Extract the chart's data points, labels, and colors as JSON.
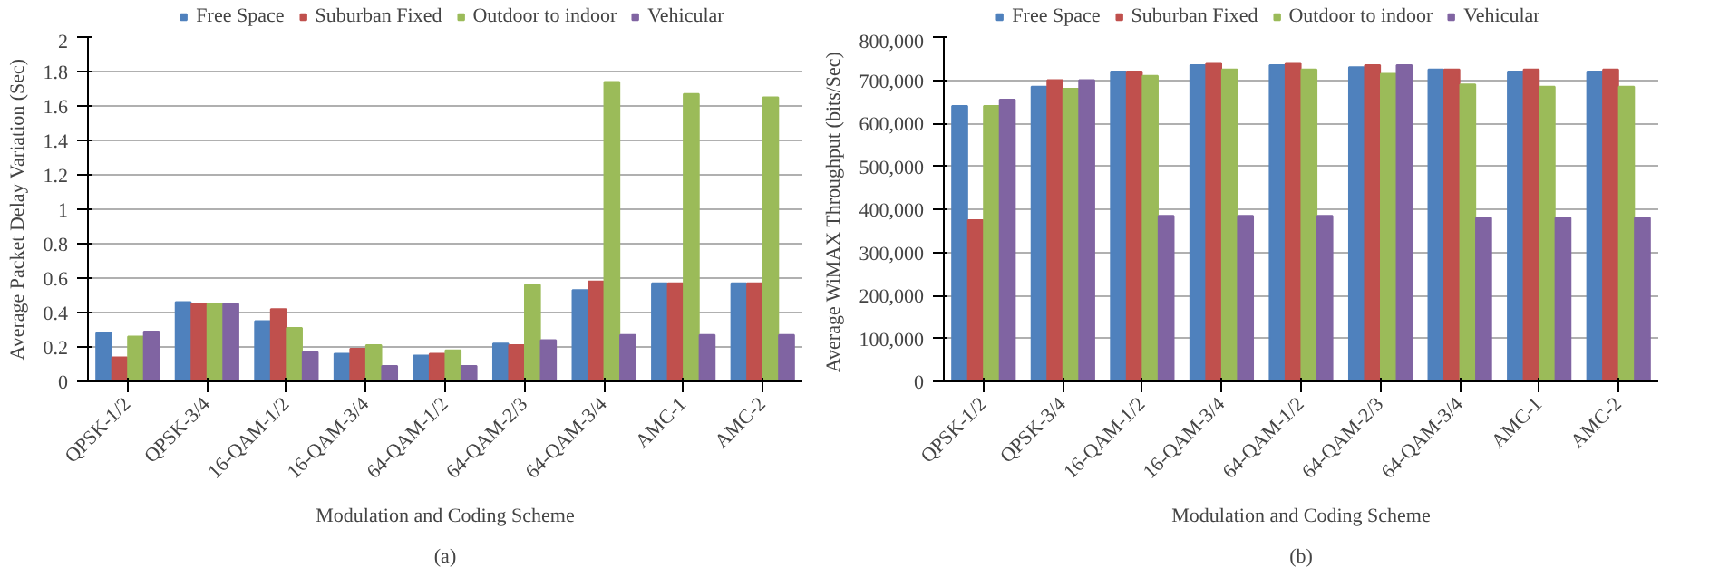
{
  "chart_data": [
    {
      "type": "bar",
      "xlabel": "Modulation and Coding Scheme",
      "ylabel": "Average Packet Delay Variation (Sec)",
      "annotations": [
        "(a)"
      ],
      "categories": [
        "QPSK-1/2",
        "QPSK-3/4",
        "16-QAM-1/2",
        "16-QAM-3/4",
        "64-QAM-1/2",
        "64-QAM-2/3",
        "64-QAM-3/4",
        "AMC-1",
        "AMC-2"
      ],
      "series": [
        {
          "name": "Free Space",
          "color": "#4f81bd",
          "values": [
            0.28,
            0.46,
            0.35,
            0.16,
            0.15,
            0.22,
            0.53,
            0.57,
            0.57
          ]
        },
        {
          "name": "Suburban Fixed",
          "color": "#c0504d",
          "values": [
            0.14,
            0.45,
            0.42,
            0.19,
            0.16,
            0.21,
            0.58,
            0.57,
            0.57
          ]
        },
        {
          "name": "Outdoor to indoor",
          "color": "#9bbb59",
          "values": [
            0.26,
            0.45,
            0.31,
            0.21,
            0.18,
            0.56,
            1.74,
            1.67,
            1.65
          ]
        },
        {
          "name": "Vehicular",
          "color": "#8064a2",
          "values": [
            0.29,
            0.45,
            0.17,
            0.09,
            0.09,
            0.24,
            0.27,
            0.27,
            0.27
          ]
        }
      ],
      "ylim": [
        0,
        2
      ],
      "yticks": [
        0,
        0.2,
        0.4,
        0.6,
        0.8,
        1,
        1.2,
        1.4,
        1.6,
        1.8,
        2
      ],
      "grid": "y",
      "legend": "top"
    },
    {
      "type": "bar",
      "xlabel": "Modulation and Coding Scheme",
      "ylabel": "Average  WiMAX Throughput (bits/Sec)",
      "annotations": [
        "(b)"
      ],
      "categories": [
        "QPSK-1/2",
        "QPSK-3/4",
        "16-QAM-1/2",
        "16-QAM-3/4",
        "64-QAM-1/2",
        "64-QAM-2/3",
        "64-QAM-3/4",
        "AMC-1",
        "AMC-2"
      ],
      "series": [
        {
          "name": "Free Space",
          "color": "#4f81bd",
          "values": [
            640000,
            685000,
            720000,
            735000,
            735000,
            730000,
            725000,
            720000,
            720000
          ]
        },
        {
          "name": "Suburban Fixed",
          "color": "#c0504d",
          "values": [
            375000,
            700000,
            720000,
            740000,
            740000,
            735000,
            725000,
            725000,
            725000
          ]
        },
        {
          "name": "Outdoor to indoor",
          "color": "#9bbb59",
          "values": [
            640000,
            680000,
            710000,
            725000,
            725000,
            715000,
            690000,
            685000,
            685000
          ]
        },
        {
          "name": "Vehicular",
          "color": "#8064a2",
          "values": [
            655000,
            700000,
            385000,
            385000,
            385000,
            735000,
            380000,
            380000,
            380000
          ]
        }
      ],
      "ylim": [
        0,
        800000
      ],
      "yticks": [
        0,
        {
          "value": 100000,
          "label": "100,000"
        },
        {
          "value": 200000,
          "label": "200,000"
        },
        {
          "value": 300000,
          "label": "300,000"
        },
        {
          "value": 400000,
          "label": "400,000"
        },
        {
          "value": 500000,
          "label": "500,000"
        },
        {
          "value": 600000,
          "label": "600,000"
        },
        {
          "value": 700000,
          "label": "700,000"
        },
        {
          "value": 800000,
          "label": "800,000"
        }
      ],
      "grid": "y",
      "legend": "top"
    }
  ]
}
